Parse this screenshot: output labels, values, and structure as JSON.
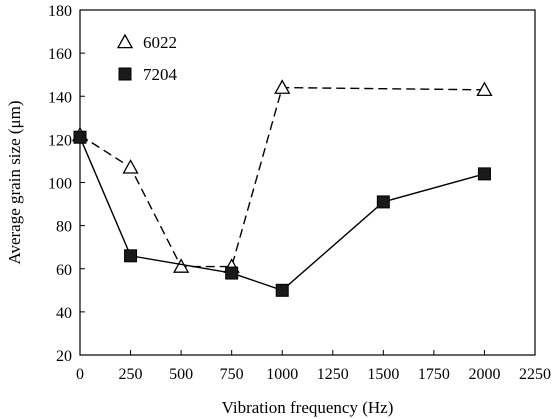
{
  "chart_data": {
    "type": "line",
    "xlabel": "Vibration frequency (Hz)",
    "ylabel": "Average grain size (μm)",
    "xlim": [
      0,
      2250
    ],
    "ylim": [
      20,
      180
    ],
    "x_ticks": [
      0,
      250,
      500,
      750,
      1000,
      1250,
      1500,
      1750,
      2000,
      2250
    ],
    "y_ticks": [
      20,
      40,
      60,
      80,
      100,
      120,
      140,
      160,
      180
    ],
    "x_tick_labels": [
      "0",
      "250",
      "500",
      "750",
      "1000",
      "1250",
      "1500",
      "1750",
      "2000",
      "2250"
    ],
    "y_tick_labels": [
      "20",
      "40",
      "60",
      "80",
      "100",
      "120",
      "140",
      "160",
      "180"
    ],
    "grid": false,
    "legend_position": "top-left",
    "series": [
      {
        "name": "6022",
        "marker": "open-triangle",
        "line_style": "dashed",
        "color": "#000000",
        "points": [
          {
            "x": 0,
            "y": 122
          },
          {
            "x": 250,
            "y": 107
          },
          {
            "x": 500,
            "y": 61
          },
          {
            "x": 750,
            "y": 61
          },
          {
            "x": 1000,
            "y": 144
          },
          {
            "x": 2000,
            "y": 143
          }
        ]
      },
      {
        "name": "7204",
        "marker": "filled-square",
        "line_style": "solid",
        "color": "#000000",
        "points": [
          {
            "x": 0,
            "y": 121
          },
          {
            "x": 250,
            "y": 66
          },
          {
            "x": 750,
            "y": 58
          },
          {
            "x": 1000,
            "y": 50
          },
          {
            "x": 1500,
            "y": 91
          },
          {
            "x": 2000,
            "y": 104
          }
        ]
      }
    ]
  }
}
